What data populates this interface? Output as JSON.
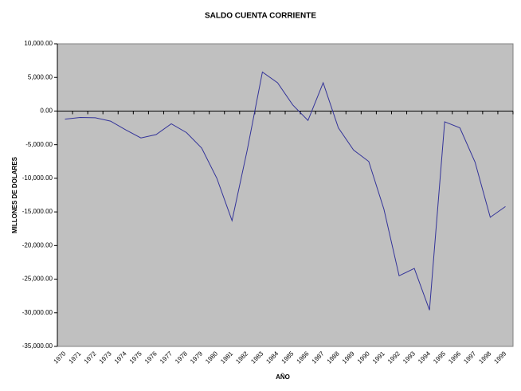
{
  "chart_data": {
    "type": "line",
    "title": "SALDO CUENTA CORRIENTE",
    "x_label": "AÑO",
    "y_label": "MILLONES DE DOLARES",
    "categories": [
      "1970",
      "1971",
      "1972",
      "1973",
      "1974",
      "1975",
      "1976",
      "1977",
      "1978",
      "1979",
      "1980",
      "1981",
      "1982",
      "1983",
      "1984",
      "1985",
      "1986",
      "1987",
      "1988",
      "1989",
      "1990",
      "1991",
      "1992",
      "1993",
      "1994",
      "1995",
      "1996",
      "1997",
      "1998",
      "1999"
    ],
    "series": [
      {
        "name": "SALDO CUENTA CORRIENTE",
        "color": "#333399",
        "values": [
          -1200,
          -950,
          -1000,
          -1500,
          -2800,
          -4000,
          -3500,
          -1900,
          -3200,
          -5500,
          -10000,
          -16300,
          -5800,
          5800,
          4200,
          900,
          -1400,
          4200,
          -2500,
          -5800,
          -7500,
          -14600,
          -24500,
          -23400,
          -29600,
          -1600,
          -2500,
          -7600,
          -15800,
          -14200
        ]
      }
    ],
    "ylim": [
      -35000,
      10000
    ],
    "yticks": [
      {
        "value": -35000,
        "label": "-35,000.00"
      },
      {
        "value": -30000,
        "label": "-30,000.00"
      },
      {
        "value": -25000,
        "label": "-25,000.00"
      },
      {
        "value": -20000,
        "label": "-20,000.00"
      },
      {
        "value": -15000,
        "label": "-15,000.00"
      },
      {
        "value": -10000,
        "label": "-10,000.00"
      },
      {
        "value": -5000,
        "label": "-5,000.00"
      },
      {
        "value": 0,
        "label": "0.00"
      },
      {
        "value": 5000,
        "label": "5,000.00"
      },
      {
        "value": 10000,
        "label": "10,000.00"
      }
    ],
    "plot_background": "#c0c0c0"
  }
}
